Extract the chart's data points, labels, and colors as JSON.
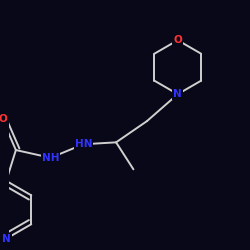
{
  "bg_color": "#080818",
  "bond_color": "#d0d0d0",
  "atom_colors": {
    "N": "#3333ff",
    "O": "#ff3333"
  },
  "lw": 1.4,
  "fontsize": 7.5
}
